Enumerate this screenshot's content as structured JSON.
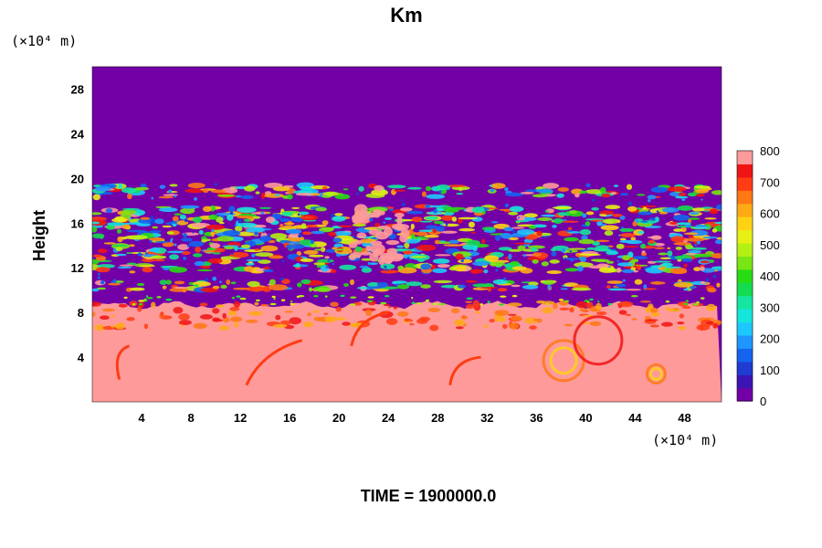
{
  "chart_data": {
    "type": "heatmap",
    "title": "Km",
    "xlabel": "",
    "ylabel": "Height",
    "x_unit_label": "(×10⁴ m)",
    "y_unit_label": "(×10⁴ m)",
    "x_ticks": [
      4,
      8,
      12,
      16,
      20,
      24,
      28,
      32,
      36,
      40,
      44,
      48
    ],
    "y_ticks": [
      4,
      8,
      12,
      16,
      20,
      24,
      28
    ],
    "xlim": [
      0,
      51
    ],
    "ylim": [
      0,
      30
    ],
    "footer": "TIME = 1900000.0",
    "colorbar": {
      "min": 0,
      "max": 800,
      "ticks": [
        0,
        100,
        200,
        300,
        400,
        500,
        600,
        700,
        800
      ],
      "colors": [
        "#7300a6",
        "#3c14b4",
        "#1e3cd2",
        "#1464f0",
        "#1e96ff",
        "#1ec8ff",
        "#14e6dc",
        "#14e6a0",
        "#14dc50",
        "#28dc14",
        "#78e614",
        "#b4f014",
        "#e6f014",
        "#ffd214",
        "#ffaa14",
        "#ff7814",
        "#ff3c14",
        "#f01414",
        "#ff9a9a"
      ]
    },
    "background_color": "#7300a6",
    "layers": [
      {
        "name": "lower-saturated-region",
        "y_range": [
          0,
          9
        ],
        "level": 800
      },
      {
        "name": "cloud-band-upper",
        "y_range": [
          10,
          19.5
        ],
        "level": "mixed"
      }
    ]
  }
}
